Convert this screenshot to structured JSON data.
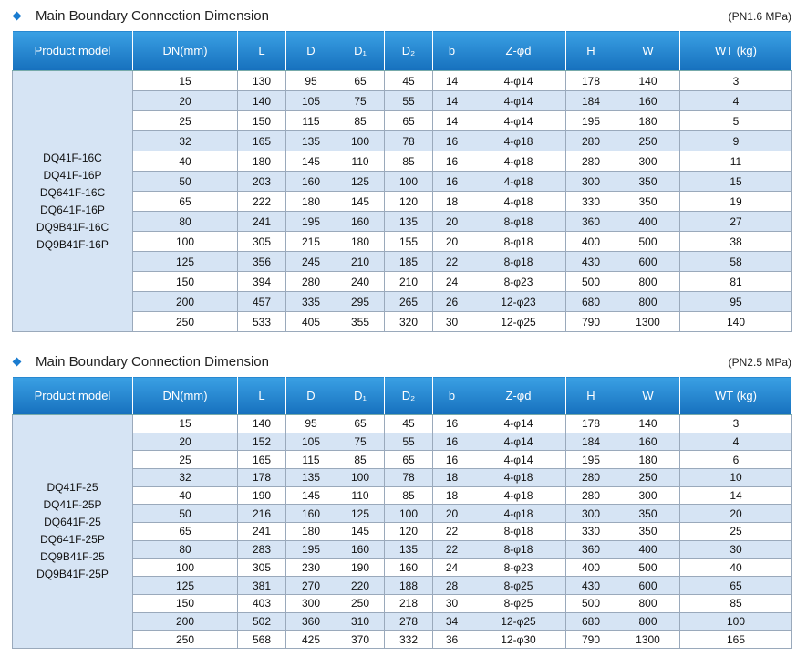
{
  "tables": [
    {
      "title": "Main Boundary Connection Dimension",
      "pressure": "(PN1.6 MPa)",
      "headers": [
        "Product model",
        "DN(mm)",
        "L",
        "D",
        "D₁",
        "D₂",
        "b",
        "Z-φd",
        "H",
        "W",
        "WT (kg)"
      ],
      "models": [
        "DQ41F-16C",
        "DQ41F-16P",
        "DQ641F-16C",
        "DQ641F-16P",
        "DQ9B41F-16C",
        "DQ9B41F-16P"
      ],
      "rows": [
        [
          15,
          130,
          95,
          65,
          45,
          14,
          "4-φ14",
          178,
          140,
          3
        ],
        [
          20,
          140,
          105,
          75,
          55,
          14,
          "4-φ14",
          184,
          160,
          4
        ],
        [
          25,
          150,
          115,
          85,
          65,
          14,
          "4-φ14",
          195,
          180,
          5
        ],
        [
          32,
          165,
          135,
          100,
          78,
          16,
          "4-φ18",
          280,
          250,
          9
        ],
        [
          40,
          180,
          145,
          110,
          85,
          16,
          "4-φ18",
          280,
          300,
          11
        ],
        [
          50,
          203,
          160,
          125,
          100,
          16,
          "4-φ18",
          300,
          350,
          15
        ],
        [
          65,
          222,
          180,
          145,
          120,
          18,
          "4-φ18",
          330,
          350,
          19
        ],
        [
          80,
          241,
          195,
          160,
          135,
          20,
          "8-φ18",
          360,
          400,
          27
        ],
        [
          100,
          305,
          215,
          180,
          155,
          20,
          "8-φ18",
          400,
          500,
          38
        ],
        [
          125,
          356,
          245,
          210,
          185,
          22,
          "8-φ18",
          430,
          600,
          58
        ],
        [
          150,
          394,
          280,
          240,
          210,
          24,
          "8-φ23",
          500,
          800,
          81
        ],
        [
          200,
          457,
          335,
          295,
          265,
          26,
          "12-φ23",
          680,
          800,
          95
        ],
        [
          250,
          533,
          405,
          355,
          320,
          30,
          "12-φ25",
          790,
          1300,
          140
        ]
      ]
    },
    {
      "title": "Main Boundary Connection Dimension",
      "pressure": "(PN2.5 MPa)",
      "headers": [
        "Product model",
        "DN(mm)",
        "L",
        "D",
        "D₁",
        "D₂",
        "b",
        "Z-φd",
        "H",
        "W",
        "WT (kg)"
      ],
      "models": [
        "DQ41F-25",
        "DQ41F-25P",
        "DQ641F-25",
        "DQ641F-25P",
        "DQ9B41F-25",
        "DQ9B41F-25P"
      ],
      "rows": [
        [
          15,
          140,
          95,
          65,
          45,
          16,
          "4-φ14",
          178,
          140,
          3
        ],
        [
          20,
          152,
          105,
          75,
          55,
          16,
          "4-φ14",
          184,
          160,
          4
        ],
        [
          25,
          165,
          115,
          85,
          65,
          16,
          "4-φ14",
          195,
          180,
          6
        ],
        [
          32,
          178,
          135,
          100,
          78,
          18,
          "4-φ18",
          280,
          250,
          10
        ],
        [
          40,
          190,
          145,
          110,
          85,
          18,
          "4-φ18",
          280,
          300,
          14
        ],
        [
          50,
          216,
          160,
          125,
          100,
          20,
          "4-φ18",
          300,
          350,
          20
        ],
        [
          65,
          241,
          180,
          145,
          120,
          22,
          "8-φ18",
          330,
          350,
          25
        ],
        [
          80,
          283,
          195,
          160,
          135,
          22,
          "8-φ18",
          360,
          400,
          30
        ],
        [
          100,
          305,
          230,
          190,
          160,
          24,
          "8-φ23",
          400,
          500,
          40
        ],
        [
          125,
          381,
          270,
          220,
          188,
          28,
          "8-φ25",
          430,
          600,
          65
        ],
        [
          150,
          403,
          300,
          250,
          218,
          30,
          "8-φ25",
          500,
          800,
          85
        ],
        [
          200,
          502,
          360,
          310,
          278,
          34,
          "12-φ25",
          680,
          800,
          100
        ],
        [
          250,
          568,
          425,
          370,
          332,
          36,
          "12-φ30",
          790,
          1300,
          165
        ]
      ]
    }
  ]
}
